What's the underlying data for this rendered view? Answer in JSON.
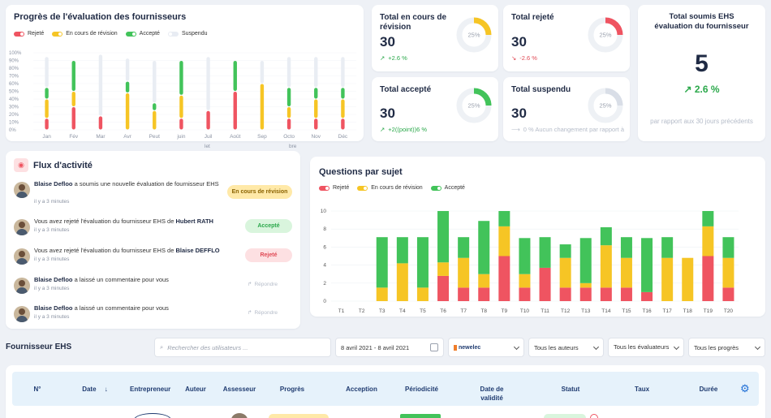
{
  "colors": {
    "red": "#ef5461",
    "yellow": "#f6c525",
    "green": "#42c35a",
    "gray": "#e9edf3",
    "blue": "#1f6fd6"
  },
  "progress_card": {
    "title": "Progrès de l'évaluation des fournisseurs",
    "legend": [
      "Rejeté",
      "En cours de révision",
      "Accepté",
      "Suspendu"
    ],
    "subtitles": [
      "let",
      "bre"
    ]
  },
  "chart_data": [
    {
      "type": "bar",
      "title": "Progrès de l'évaluation des fournisseurs",
      "categories": [
        "Jan",
        "Fév",
        "Mar",
        "Avr",
        "Peut",
        "juin",
        "Juil",
        "Août",
        "Sep",
        "Octo",
        "Nov",
        "Déc"
      ],
      "ylim": [
        0,
        100
      ],
      "yticks": [
        "0%",
        "10%",
        "20%",
        "30%",
        "40%",
        "50%",
        "60%",
        "70%",
        "80%",
        "90%",
        "100%"
      ],
      "series": [
        {
          "name": "Rejeté",
          "values": [
            15,
            30,
            18,
            0,
            0,
            15,
            25,
            50,
            0,
            15,
            15,
            15
          ]
        },
        {
          "name": "En cours de révision",
          "values": [
            25,
            20,
            0,
            48,
            25,
            30,
            0,
            0,
            60,
            15,
            25,
            25
          ]
        },
        {
          "name": "Accepté",
          "values": [
            15,
            40,
            0,
            15,
            10,
            45,
            0,
            40,
            0,
            25,
            15,
            15
          ]
        },
        {
          "name": "Suspendu",
          "values": [
            40,
            0,
            80,
            30,
            55,
            0,
            70,
            0,
            30,
            40,
            40,
            40
          ]
        }
      ]
    },
    {
      "type": "bar",
      "title": "Questions par sujet",
      "categories": [
        "T1",
        "T2",
        "T3",
        "T4",
        "T5",
        "T6",
        "T7",
        "T8",
        "T9",
        "T10",
        "T11",
        "T12",
        "T13",
        "T14",
        "T15",
        "T16",
        "T17",
        "T18",
        "T19",
        "T20"
      ],
      "ylim": [
        0,
        10
      ],
      "yticks": [
        "0",
        "2",
        "4",
        "6",
        "8",
        "10"
      ],
      "series": [
        {
          "name": "Rejeté",
          "values": [
            0,
            0,
            0,
            0,
            0,
            2.8,
            1.5,
            1.5,
            5,
            1.5,
            3.7,
            1.5,
            1.5,
            1.5,
            1.5,
            1,
            0,
            0,
            5,
            1.5
          ]
        },
        {
          "name": "En cours de révision",
          "values": [
            0,
            0,
            1.5,
            4.2,
            1.5,
            1.5,
            3.3,
            1.5,
            3.3,
            1.5,
            0,
            3.3,
            0.5,
            4.7,
            3.3,
            0,
            4.8,
            4.8,
            3.3,
            3.3
          ]
        },
        {
          "name": "Accepté",
          "values": [
            0,
            0,
            5.6,
            2.9,
            5.6,
            5.7,
            2.3,
            5.9,
            1.7,
            4,
            3.4,
            1.5,
            5,
            2,
            2.3,
            6,
            2.3,
            0,
            1.7,
            2.3
          ]
        }
      ]
    }
  ],
  "kpis": [
    {
      "title": "Total en cours de révision",
      "value": "30",
      "delta": "+2.6 %",
      "donut_pct": "25%",
      "donut_fraction": 0.25,
      "color": "#f6c525"
    },
    {
      "title": "Total rejeté",
      "value": "30",
      "delta": "-2.6 %",
      "donut_pct": "25%",
      "donut_fraction": 0.25,
      "color": "#ef5461"
    },
    {
      "title": "Total accepté",
      "value": "30",
      "delta": "+2((point))6 %",
      "donut_pct": "25%",
      "donut_fraction": 0.25,
      "color": "#42c35a"
    },
    {
      "title": "Total suspendu",
      "value": "30",
      "delta": "0 % Aucun changement par rapport à",
      "donut_pct": "25%",
      "donut_fraction": 0.25,
      "color": "#d9dee7"
    }
  ],
  "total_card": {
    "title": "Total soumis EHS évaluation du fournisseur",
    "value": "5",
    "delta": "2.6 %",
    "note": "par rapport aux 30 jours précédents"
  },
  "activity": {
    "title": "Flux d'activité",
    "items": [
      {
        "name": "Blaise Defloo",
        "text": " a soumis une nouvelle évaluation de fournisseur EHS",
        "time": "il y a 3 minutes",
        "badge": "En cours de révision",
        "kind": "yellow"
      },
      {
        "name": "",
        "text": "Vous avez rejeté l'évaluation du fournisseur EHS de ",
        "name2": "Hubert RATH",
        "time": "il y a 3 minutes",
        "badge": "Accepté",
        "kind": "green"
      },
      {
        "name": "",
        "text": "Vous avez rejeté l'évaluation du fournisseur EHS de ",
        "name2": "Blaise DEFFLO",
        "time": "il y a 3 minutes",
        "badge": "Rejeté",
        "kind": "red"
      },
      {
        "name": "Blaise Defloo",
        "text": " a laissé un commentaire pour vous",
        "time": "il y a 3 minutes",
        "badge": "Répondre",
        "kind": "reply"
      },
      {
        "name": "Blaise Defloo",
        "text": " a laissé un commentaire pour vous",
        "time": "il y a 3 minutes",
        "badge": "Répondre",
        "kind": "reply"
      }
    ]
  },
  "questions_card": {
    "title": "Questions par sujet",
    "legend": [
      "Rejeté",
      "En cours de révision",
      "Accepté"
    ]
  },
  "suppliers": {
    "title": "Fournisseur EHS",
    "search_placeholder": "Rechercher des utilisateurs ...",
    "date_range": "8 avril 2021 - 8 avril 2021",
    "company_logo": "newelec",
    "authors": "Tous les auteurs",
    "evaluators": "Tous les évaluateurs",
    "progress": "Tous les progrès",
    "columns": [
      "N°",
      "Date",
      "Entrepreneur",
      "Auteur",
      "Assesseur",
      "Progrès",
      "Acception",
      "Périodicité",
      "Date de validité",
      "Statut",
      "Taux",
      "Durée"
    ]
  }
}
